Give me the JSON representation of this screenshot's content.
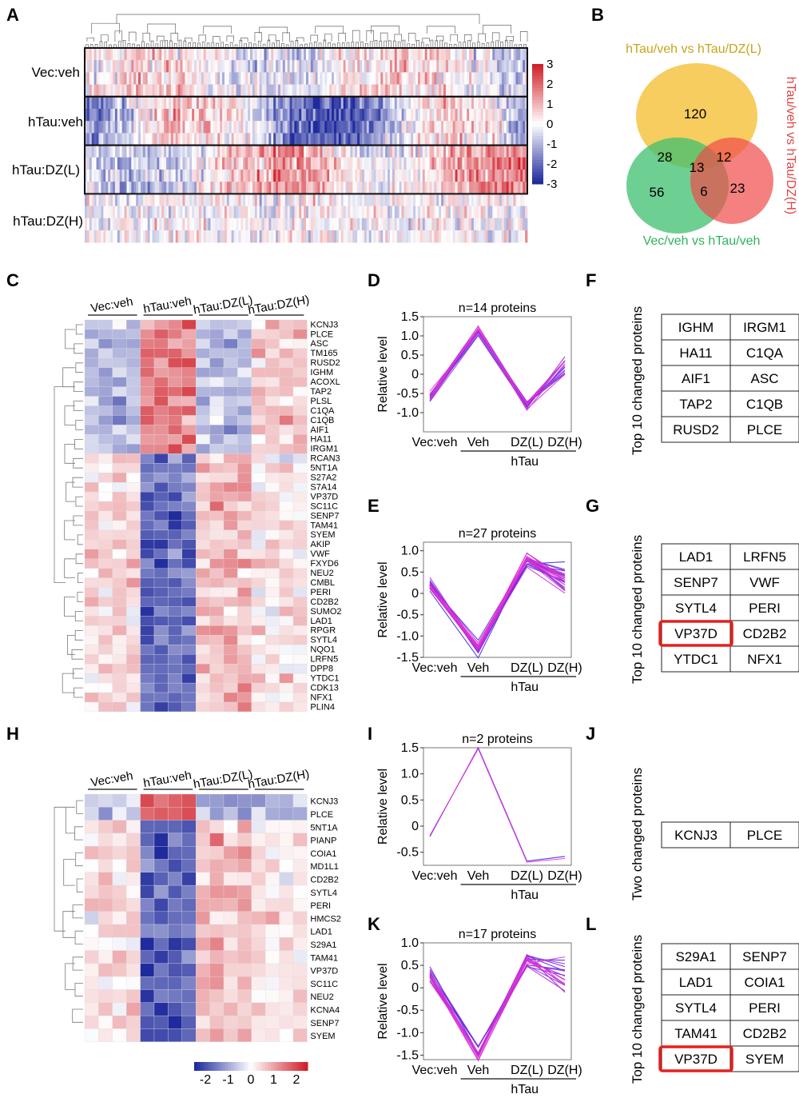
{
  "panel_letters": [
    "A",
    "B",
    "C",
    "D",
    "E",
    "F",
    "G",
    "H",
    "I",
    "J",
    "K",
    "L"
  ],
  "colors": {
    "high": "#d0202a",
    "mid": "#ffffff",
    "low": "#1f2a9c",
    "venn_yellow": "#f6c443",
    "venn_green": "#3dbf6f",
    "venn_red": "#ef4a4a",
    "highlight": "#e81e1e"
  },
  "panelA": {
    "groups": [
      "Vec:veh",
      "hTau:veh",
      "hTau:DZ(L)",
      "hTau:DZ(H)"
    ],
    "colorbar_ticks": [
      "3",
      "2",
      "1",
      "0",
      "-1",
      "-2",
      "-3"
    ]
  },
  "panelB": {
    "set_labels": [
      "hTau/veh vs hTau/DZ(L)",
      "hTau/veh vs hTau/DZ(H)",
      "Vec/veh vs hTau/veh"
    ],
    "counts": {
      "a_only": "120",
      "ab": "12",
      "abc": "13",
      "ac": "28",
      "c_only": "56",
      "bc": "6",
      "b_only": "23"
    }
  },
  "panelC": {
    "groups": [
      "Vec:veh",
      "hTau:veh",
      "hTau:DZ(L)",
      "hTau:DZ(H)"
    ],
    "genes": [
      "KCNJ3",
      "PLCE",
      "ASC",
      "TM165",
      "RUSD2",
      "IGHM",
      "ACOXL",
      "TAP2",
      "PLSL",
      "C1QA",
      "C1QB",
      "AIF1",
      "HA11",
      "IRGM1",
      "RCAN3",
      "5NT1A",
      "S27A2",
      "S7A14",
      "VP37D",
      "SC11C",
      "SENP7",
      "TAM41",
      "SYEM",
      "AKIP",
      "VWF",
      "FXYD6",
      "NEU2",
      "CMBL",
      "PERI",
      "CD2B2",
      "SUMO2",
      "LAD1",
      "RPGR",
      "SYTL4",
      "NQO1",
      "LRFN5",
      "DPP8",
      "YTDC1",
      "CDK13",
      "NFX1",
      "PLIN4"
    ]
  },
  "panelH": {
    "groups": [
      "Vec:veh",
      "hTau:veh",
      "hTau:DZ(L)",
      "hTau:DZ(H)"
    ],
    "genes": [
      "KCNJ3",
      "PLCE",
      "5NT1A",
      "PIANP",
      "COIA1",
      "MD1L1",
      "CD2B2",
      "SYTL4",
      "PERI",
      "HMCS2",
      "LAD1",
      "S29A1",
      "TAM41",
      "VP37D",
      "SC11C",
      "NEU2",
      "KCNA4",
      "SENP7",
      "SYEM"
    ],
    "colorbar_ticks": [
      "-2",
      "-1",
      "0",
      "1",
      "2"
    ]
  },
  "chart_data": [
    {
      "panel": "D",
      "type": "line",
      "title": "n=14 proteins",
      "ylabel": "Relative level",
      "xlabel": "hTau",
      "categories": [
        "Vec:veh",
        "Veh",
        "DZ(L)",
        "DZ(H)"
      ],
      "ylim": [
        -1.5,
        1.5
      ],
      "yticks": [
        "1.5",
        "1.0",
        "0.5",
        "0",
        "-0.5",
        "-1.0"
      ],
      "n_lines": 14,
      "mean": [
        -0.6,
        1.15,
        -0.8,
        0.25
      ]
    },
    {
      "panel": "E",
      "type": "line",
      "title": "n=27 proteins",
      "ylabel": "Relative level",
      "xlabel": "hTau",
      "categories": [
        "Vec:veh",
        "Veh",
        "DZ(L)",
        "DZ(H)"
      ],
      "ylim": [
        -1.5,
        1.2
      ],
      "yticks": [
        "1.0",
        "0.5",
        "0",
        "-0.5",
        "-1.0",
        "-1.5"
      ],
      "n_lines": 27,
      "mean": [
        0.2,
        -1.3,
        0.8,
        0.3
      ]
    },
    {
      "panel": "I",
      "type": "line",
      "title": "n=2 proteins",
      "ylabel": "Relative level",
      "xlabel": "hTau",
      "categories": [
        "Vec:veh",
        "Veh",
        "DZ(L)",
        "DZ(H)"
      ],
      "ylim": [
        -0.75,
        1.5
      ],
      "yticks": [
        "1.5",
        "1.0",
        "0.5",
        "0",
        "-0.5"
      ],
      "series": [
        {
          "values": [
            -0.2,
            1.5,
            -0.67,
            -0.58
          ]
        },
        {
          "values": [
            -0.18,
            1.48,
            -0.69,
            -0.62
          ]
        }
      ]
    },
    {
      "panel": "K",
      "type": "line",
      "title": "n=17 proteins",
      "ylabel": "Relative level",
      "xlabel": "hTau",
      "categories": [
        "Vec:veh",
        "Veh",
        "DZ(L)",
        "DZ(H)"
      ],
      "ylim": [
        -1.6,
        1.0
      ],
      "yticks": [
        "1.0",
        "0.5",
        "0",
        "-0.5",
        "-1.0",
        "-1.5"
      ],
      "n_lines": 17,
      "mean": [
        0.3,
        -1.45,
        0.65,
        0.3
      ]
    }
  ],
  "tables": {
    "F": {
      "side_label": "Top 10 changed proteins",
      "rows": [
        [
          "IGHM",
          "IRGM1"
        ],
        [
          "HA11",
          "C1QA"
        ],
        [
          "AIF1",
          "ASC"
        ],
        [
          "TAP2",
          "C1QB"
        ],
        [
          "RUSD2",
          "PLCE"
        ]
      ]
    },
    "G": {
      "side_label": "Top 10 changed proteins",
      "rows": [
        [
          "LAD1",
          "LRFN5"
        ],
        [
          "SENP7",
          "VWF"
        ],
        [
          "SYTL4",
          "PERI"
        ],
        [
          "VP37D",
          "CD2B2"
        ],
        [
          "YTDC1",
          "NFX1"
        ]
      ],
      "highlight": [
        3,
        0
      ]
    },
    "J": {
      "side_label": "Two changed proteins",
      "rows": [
        [
          "KCNJ3",
          "PLCE"
        ]
      ]
    },
    "L": {
      "side_label": "Top 10 changed proteins",
      "rows": [
        [
          "S29A1",
          "SENP7"
        ],
        [
          "LAD1",
          "COIA1"
        ],
        [
          "SYTL4",
          "PERI"
        ],
        [
          "TAM41",
          "CD2B2"
        ],
        [
          "VP37D",
          "SYEM"
        ]
      ],
      "highlight": [
        4,
        0
      ]
    }
  }
}
